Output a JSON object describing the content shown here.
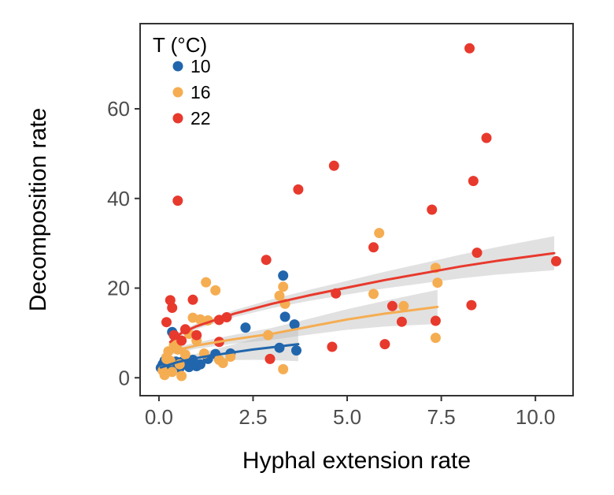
{
  "chart_data": {
    "type": "scatter",
    "xlabel": "Hyphal extension rate",
    "ylabel": "Decomposition rate",
    "xlim": [
      -0.5,
      11.0
    ],
    "ylim": [
      -4,
      79
    ],
    "x_ticks": [
      0,
      2.5,
      5,
      7.5,
      10
    ],
    "x_tick_labels": [
      "0.0",
      "2.5",
      "5.0",
      "7.5",
      "10.0"
    ],
    "y_ticks": [
      0,
      20,
      40,
      60
    ],
    "y_tick_labels": [
      "0",
      "20",
      "40",
      "60"
    ],
    "grid": false,
    "legend": {
      "title": "T (°C)",
      "placement": "top-left"
    },
    "series": [
      {
        "name": "10",
        "color": "#2166ac",
        "points": [
          [
            0.05,
            2.2
          ],
          [
            0.1,
            3.0
          ],
          [
            0.15,
            3.8
          ],
          [
            0.2,
            2.0
          ],
          [
            0.25,
            2.5
          ],
          [
            0.3,
            3.2
          ],
          [
            0.35,
            10.2
          ],
          [
            0.4,
            9.5
          ],
          [
            0.4,
            2.3
          ],
          [
            0.45,
            3.6
          ],
          [
            0.5,
            2.8
          ],
          [
            0.55,
            2.2
          ],
          [
            0.6,
            3.5
          ],
          [
            0.7,
            3.0
          ],
          [
            0.8,
            2.4
          ],
          [
            0.9,
            4.0
          ],
          [
            1.0,
            2.6
          ],
          [
            1.1,
            3.0
          ],
          [
            1.3,
            4.2
          ],
          [
            1.5,
            5.3
          ],
          [
            1.9,
            5.4
          ],
          [
            2.3,
            11.2
          ],
          [
            3.2,
            6.7
          ],
          [
            3.3,
            22.8
          ],
          [
            3.35,
            13.6
          ],
          [
            3.6,
            11.9
          ],
          [
            3.65,
            6.1
          ]
        ],
        "fit": [
          [
            0.05,
            2.3
          ],
          [
            0.5,
            3.5
          ],
          [
            1.0,
            4.4
          ],
          [
            1.5,
            5.1
          ],
          [
            2.0,
            5.7
          ],
          [
            2.5,
            6.3
          ],
          [
            3.0,
            6.8
          ],
          [
            3.7,
            7.5
          ]
        ]
      },
      {
        "name": "16",
        "color": "#f5ad52",
        "points": [
          [
            0.1,
            1.6
          ],
          [
            0.15,
            0.6
          ],
          [
            0.2,
            4.2
          ],
          [
            0.25,
            5.9
          ],
          [
            0.3,
            3.8
          ],
          [
            0.35,
            1.3
          ],
          [
            0.4,
            7.4
          ],
          [
            0.5,
            6.3
          ],
          [
            0.55,
            3.0
          ],
          [
            0.6,
            0.4
          ],
          [
            0.7,
            5.2
          ],
          [
            0.8,
            9.8
          ],
          [
            0.9,
            13.4
          ],
          [
            1.0,
            8.3
          ],
          [
            1.1,
            13.0
          ],
          [
            1.2,
            5.4
          ],
          [
            1.25,
            21.3
          ],
          [
            1.3,
            12.8
          ],
          [
            1.5,
            19.5
          ],
          [
            1.6,
            4.0
          ],
          [
            1.7,
            3.3
          ],
          [
            1.9,
            4.7
          ],
          [
            2.9,
            9.5
          ],
          [
            3.2,
            18.3
          ],
          [
            3.3,
            20.3
          ],
          [
            3.3,
            1.9
          ],
          [
            3.35,
            16.5
          ],
          [
            5.7,
            18.7
          ],
          [
            5.85,
            32.3
          ],
          [
            6.5,
            16.0
          ],
          [
            7.35,
            24.5
          ],
          [
            7.4,
            21.2
          ],
          [
            7.35,
            8.9
          ]
        ],
        "fit": [
          [
            0.1,
            5.0
          ],
          [
            0.5,
            6.2
          ],
          [
            1.0,
            7.2
          ],
          [
            2.0,
            8.6
          ],
          [
            3.0,
            9.8
          ],
          [
            4.0,
            11.4
          ],
          [
            5.0,
            13.0
          ],
          [
            6.0,
            14.3
          ],
          [
            7.4,
            15.8
          ]
        ]
      },
      {
        "name": "22",
        "color": "#e8392d",
        "points": [
          [
            0.2,
            12.4
          ],
          [
            0.3,
            17.3
          ],
          [
            0.35,
            15.6
          ],
          [
            0.4,
            9.5
          ],
          [
            0.5,
            39.5
          ],
          [
            0.6,
            8.3
          ],
          [
            0.7,
            10.8
          ],
          [
            0.9,
            17.4
          ],
          [
            1.0,
            9.5
          ],
          [
            1.6,
            12.9
          ],
          [
            1.6,
            8.0
          ],
          [
            1.8,
            13.5
          ],
          [
            2.85,
            26.3
          ],
          [
            2.95,
            4.2
          ],
          [
            3.7,
            42.0
          ],
          [
            4.6,
            6.9
          ],
          [
            4.65,
            47.3
          ],
          [
            4.7,
            18.8
          ],
          [
            5.7,
            29.1
          ],
          [
            6.0,
            7.5
          ],
          [
            6.2,
            16.0
          ],
          [
            6.45,
            12.5
          ],
          [
            7.25,
            37.5
          ],
          [
            7.35,
            12.7
          ],
          [
            8.25,
            73.5
          ],
          [
            8.3,
            16.2
          ],
          [
            8.35,
            43.9
          ],
          [
            8.45,
            27.9
          ],
          [
            8.7,
            53.5
          ],
          [
            10.55,
            26.0
          ]
        ],
        "fit": [
          [
            0.3,
            8.0
          ],
          [
            0.6,
            10.0
          ],
          [
            1.0,
            11.5
          ],
          [
            2.0,
            14.3
          ],
          [
            3.0,
            16.5
          ],
          [
            4.0,
            18.4
          ],
          [
            5.0,
            20.1
          ],
          [
            6.0,
            21.8
          ],
          [
            7.0,
            23.3
          ],
          [
            8.0,
            24.8
          ],
          [
            9.0,
            26.1
          ],
          [
            10.5,
            27.8
          ]
        ]
      }
    ]
  }
}
